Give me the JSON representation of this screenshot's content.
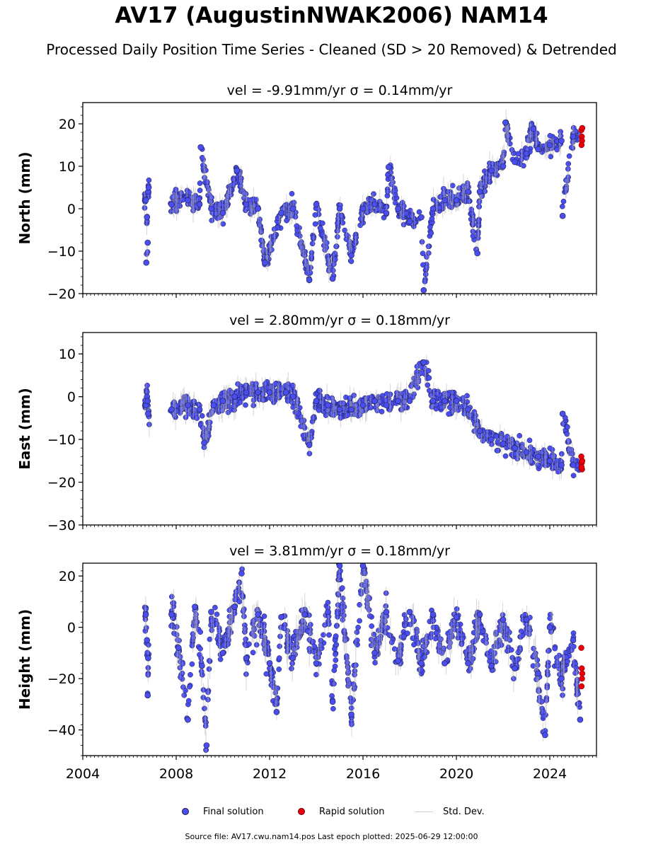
{
  "title": "AV17 (AugustinNWAK2006) NAM14",
  "subtitle": "Processed Daily Position Time Series - Cleaned (SD > 20 Removed) & Detrended",
  "legend": {
    "final": "Final solution",
    "rapid": "Rapid solution",
    "std": "Std. Dev."
  },
  "footer": "Source file: AV17.cwu.nam14.pos  Last epoch plotted: 2025-06-29 12:00:00",
  "colors": {
    "final_fill": "#4a4ef0",
    "final_edge": "#1a1a40",
    "rapid_fill": "#e8000b",
    "errorbar": "#b4b4b4"
  },
  "chart_data": [
    {
      "type": "scatter",
      "panel_title": "vel = -9.91mm/yr   σ = 0.14mm/yr",
      "ylabel": "North (mm)",
      "ylim": [
        -20,
        25
      ],
      "yticks": [
        -20,
        -10,
        0,
        10,
        20
      ],
      "xlim": [
        2004,
        2026
      ],
      "xticks": [],
      "grid": false,
      "series": [
        {
          "name": "Final solution",
          "points": [
            [
              2006.7,
              2
            ],
            [
              2006.75,
              -2
            ],
            [
              2006.8,
              4
            ],
            [
              2006.78,
              -8
            ],
            [
              2006.72,
              -12.7
            ],
            [
              2006.82,
              5
            ],
            [
              2007.8,
              1
            ],
            [
              2008.5,
              2
            ],
            [
              2009.0,
              1
            ],
            [
              2009.05,
              14.5
            ],
            [
              2009.5,
              0
            ],
            [
              2010.0,
              -1
            ],
            [
              2010.6,
              9
            ],
            [
              2011.0,
              1
            ],
            [
              2011.5,
              0
            ],
            [
              2011.8,
              -12.7
            ],
            [
              2012.5,
              -1
            ],
            [
              2013.0,
              0
            ],
            [
              2013.7,
              -16.8
            ],
            [
              2014.0,
              1
            ],
            [
              2014.7,
              -16.5
            ],
            [
              2015.0,
              0
            ],
            [
              2015.5,
              -11
            ],
            [
              2016.0,
              0
            ],
            [
              2016.5,
              1
            ],
            [
              2017.0,
              -1
            ],
            [
              2017.1,
              9.8
            ],
            [
              2017.5,
              0
            ],
            [
              2018.0,
              -3
            ],
            [
              2018.5,
              -2
            ],
            [
              2018.6,
              -19.2
            ],
            [
              2019.0,
              0
            ],
            [
              2019.5,
              2
            ],
            [
              2020.0,
              2
            ],
            [
              2020.5,
              4
            ],
            [
              2020.9,
              -10.5
            ],
            [
              2021.0,
              4
            ],
            [
              2021.5,
              9
            ],
            [
              2022.0,
              10
            ],
            [
              2022.1,
              20.3
            ],
            [
              2022.5,
              11
            ],
            [
              2023.0,
              13
            ],
            [
              2023.3,
              18.8
            ],
            [
              2023.5,
              14
            ],
            [
              2024.0,
              15
            ],
            [
              2024.5,
              16
            ],
            [
              2024.55,
              -1.7
            ],
            [
              2025.0,
              17
            ]
          ]
        },
        {
          "name": "Rapid solution",
          "points": [
            [
              2025.35,
              18.5
            ],
            [
              2025.37,
              17
            ],
            [
              2025.38,
              16
            ],
            [
              2025.36,
              15
            ],
            [
              2025.39,
              19
            ]
          ]
        }
      ]
    },
    {
      "type": "scatter",
      "panel_title": "vel = 2.80mm/yr   σ = 0.18mm/yr",
      "ylabel": "East (mm)",
      "ylim": [
        -30,
        15
      ],
      "yticks": [
        -30,
        -20,
        -10,
        0,
        10
      ],
      "xlim": [
        2004,
        2026
      ],
      "xticks": [],
      "grid": false,
      "series": [
        {
          "name": "Final solution",
          "points": [
            [
              2006.7,
              -2
            ],
            [
              2006.75,
              0
            ],
            [
              2006.8,
              -4
            ],
            [
              2006.78,
              -1
            ],
            [
              2007.8,
              -3
            ],
            [
              2008.5,
              -2
            ],
            [
              2009.0,
              -3
            ],
            [
              2009.2,
              -10.8
            ],
            [
              2009.6,
              -2
            ],
            [
              2010.0,
              -1
            ],
            [
              2010.5,
              0
            ],
            [
              2011.0,
              1
            ],
            [
              2011.5,
              1
            ],
            [
              2012.0,
              1
            ],
            [
              2012.7,
              1
            ],
            [
              2013.0,
              0
            ],
            [
              2013.7,
              -11.3
            ],
            [
              2014.0,
              -1
            ],
            [
              2014.5,
              -2
            ],
            [
              2015.0,
              -3
            ],
            [
              2015.5,
              -3
            ],
            [
              2016.0,
              -2
            ],
            [
              2016.5,
              -1
            ],
            [
              2017.0,
              -2
            ],
            [
              2017.5,
              -1
            ],
            [
              2018.0,
              -1
            ],
            [
              2018.6,
              8
            ],
            [
              2019.0,
              -1
            ],
            [
              2019.5,
              -1
            ],
            [
              2020.0,
              -1
            ],
            [
              2020.5,
              -3
            ],
            [
              2021.0,
              -8
            ],
            [
              2021.5,
              -10
            ],
            [
              2022.0,
              -11
            ],
            [
              2022.5,
              -12
            ],
            [
              2023.0,
              -13
            ],
            [
              2023.5,
              -14
            ],
            [
              2024.0,
              -15
            ],
            [
              2024.5,
              -16
            ],
            [
              2024.55,
              -4
            ],
            [
              2025.0,
              -16
            ]
          ]
        },
        {
          "name": "Rapid solution",
          "points": [
            [
              2025.35,
              -14
            ],
            [
              2025.37,
              -15.5
            ],
            [
              2025.38,
              -17
            ],
            [
              2025.36,
              -16.5
            ],
            [
              2025.39,
              -15
            ]
          ]
        }
      ]
    },
    {
      "type": "scatter",
      "panel_title": "vel = 3.81mm/yr   σ = 0.18mm/yr",
      "ylabel": "Height (mm)",
      "ylim": [
        -50,
        25
      ],
      "yticks": [
        -40,
        -20,
        0,
        20
      ],
      "xlim": [
        2004,
        2026
      ],
      "xticks": [
        2004,
        2008,
        2012,
        2016,
        2020,
        2024
      ],
      "grid": false,
      "series": [
        {
          "name": "Final solution",
          "points": [
            [
              2006.7,
              5
            ],
            [
              2006.75,
              -5
            ],
            [
              2006.8,
              -12
            ],
            [
              2006.78,
              -26.5
            ],
            [
              2007.8,
              5
            ],
            [
              2008.1,
              -8
            ],
            [
              2008.5,
              -36
            ],
            [
              2008.8,
              8
            ],
            [
              2009.1,
              -15
            ],
            [
              2009.3,
              -46
            ],
            [
              2009.5,
              6
            ],
            [
              2010.0,
              -10
            ],
            [
              2010.5,
              8
            ],
            [
              2010.8,
              21
            ],
            [
              2011.0,
              -12
            ],
            [
              2011.5,
              5
            ],
            [
              2012.0,
              -14
            ],
            [
              2012.3,
              -33
            ],
            [
              2012.5,
              4
            ],
            [
              2013.0,
              -12
            ],
            [
              2013.5,
              5
            ],
            [
              2014.0,
              -14
            ],
            [
              2014.5,
              6
            ],
            [
              2014.7,
              -29
            ],
            [
              2015.0,
              24
            ],
            [
              2015.5,
              -34
            ],
            [
              2016.0,
              24
            ],
            [
              2016.5,
              -10
            ],
            [
              2017.0,
              6
            ],
            [
              2017.5,
              -13
            ],
            [
              2018.0,
              6
            ],
            [
              2018.5,
              -14
            ],
            [
              2019.0,
              5
            ],
            [
              2019.5,
              -14
            ],
            [
              2020.0,
              4
            ],
            [
              2020.5,
              -14
            ],
            [
              2021.0,
              5
            ],
            [
              2021.5,
              -15
            ],
            [
              2022.0,
              3
            ],
            [
              2022.5,
              -16
            ],
            [
              2023.0,
              3
            ],
            [
              2023.5,
              -18
            ],
            [
              2023.8,
              -42
            ],
            [
              2024.0,
              0
            ],
            [
              2024.5,
              -20
            ],
            [
              2025.0,
              -5
            ],
            [
              2025.3,
              -36
            ]
          ]
        },
        {
          "name": "Rapid solution",
          "points": [
            [
              2025.35,
              -8
            ],
            [
              2025.37,
              -16
            ],
            [
              2025.38,
              -20
            ],
            [
              2025.36,
              -23
            ],
            [
              2025.39,
              -18
            ]
          ]
        }
      ]
    }
  ]
}
